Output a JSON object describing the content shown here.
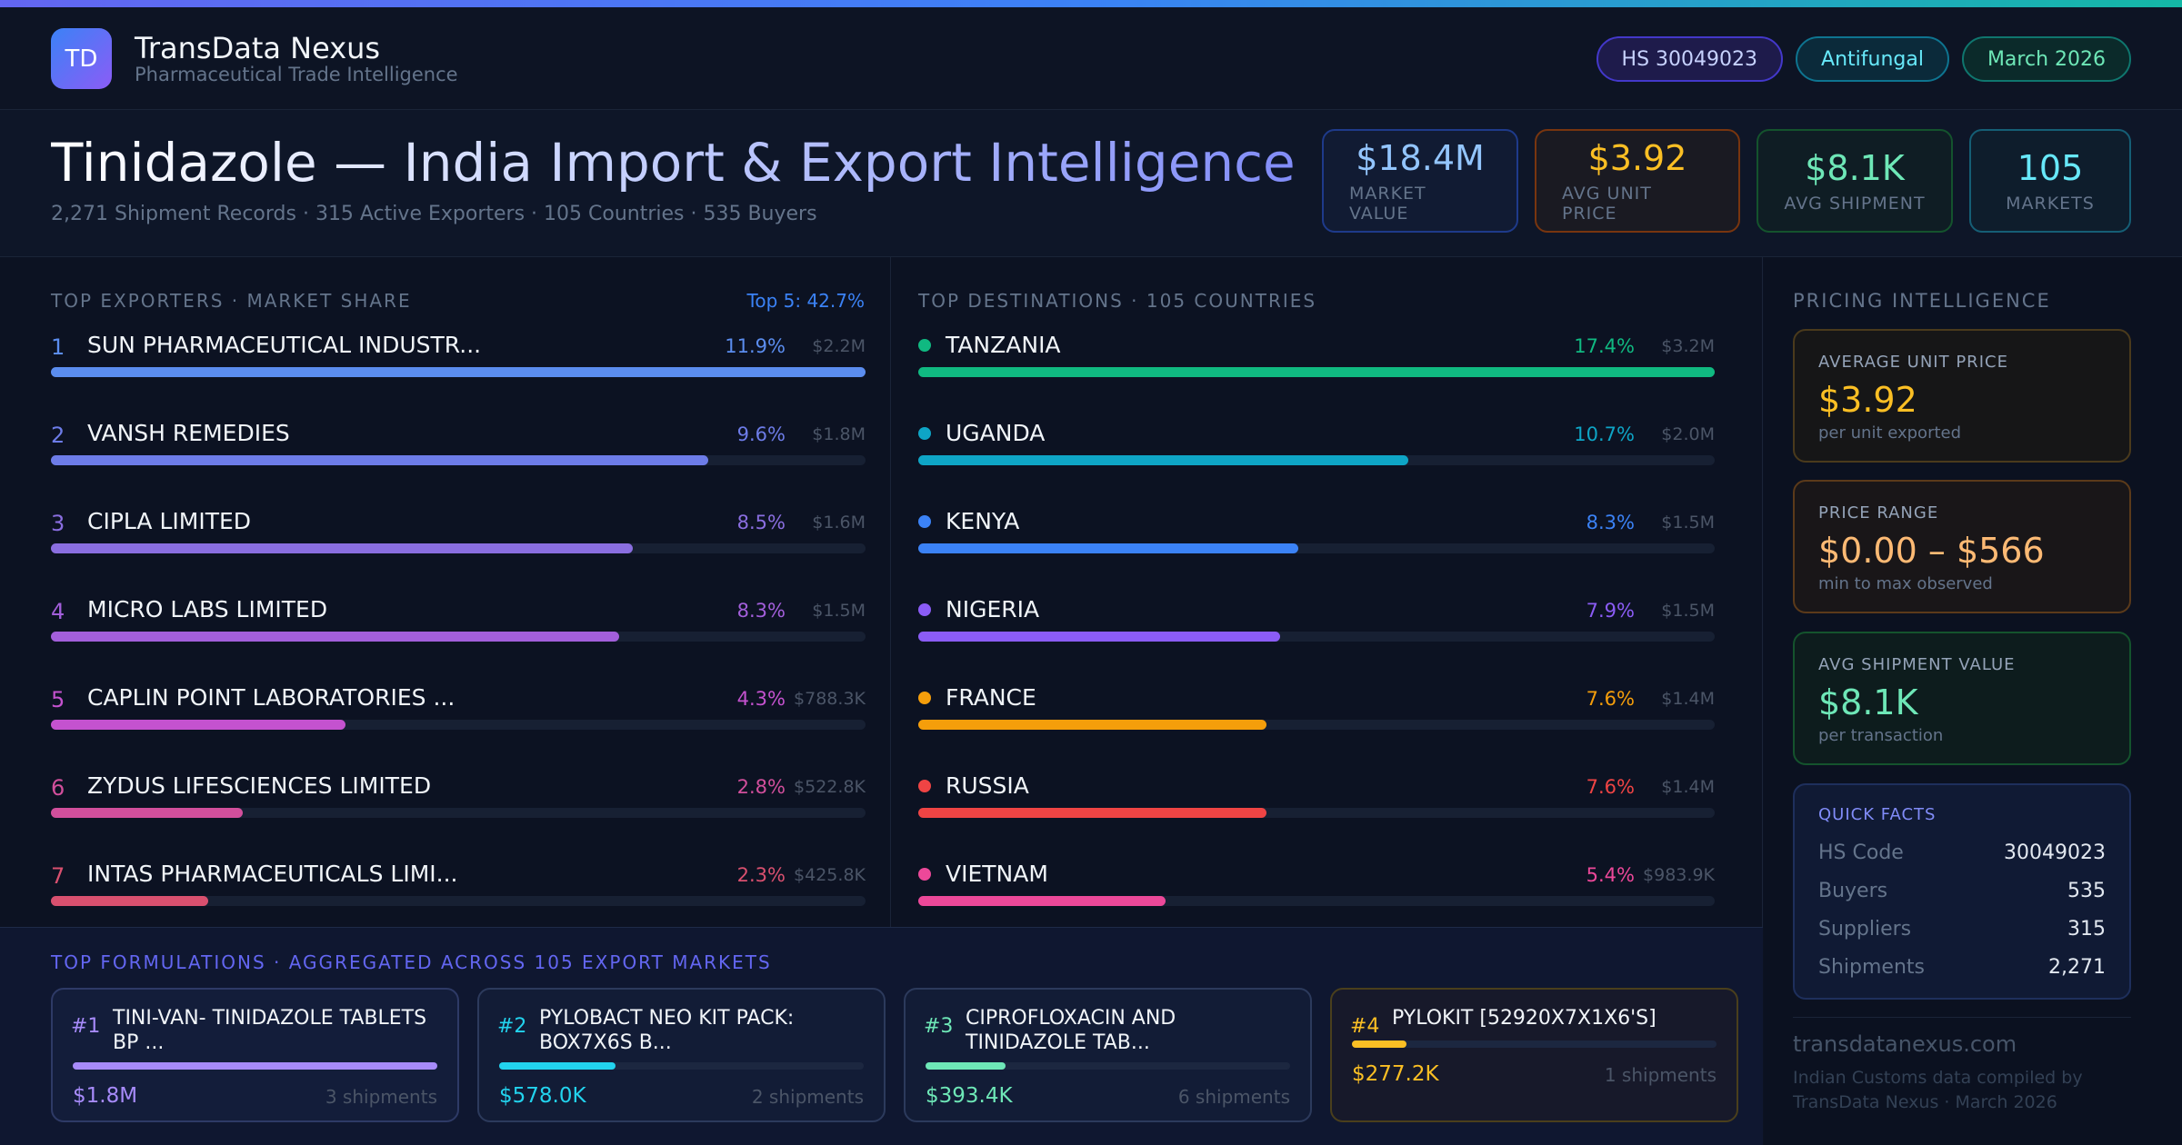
{
  "header": {
    "logo": "TD",
    "brand_name": "TransData Nexus",
    "brand_sub": "Pharmaceutical Trade Intelligence",
    "pills": [
      "HS 30049023",
      "Antifungal",
      "March 2026"
    ]
  },
  "title": {
    "main": "Tinidazole — India Import & Export Intelligence",
    "sub": "2,271 Shipment Records · 315 Active Exporters · 105 Countries · 535 Buyers"
  },
  "kpis": [
    {
      "value": "$18.4M",
      "label": "MARKET VALUE"
    },
    {
      "value": "$3.92",
      "label": "AVG UNIT PRICE"
    },
    {
      "value": "$8.1K",
      "label": "AVG SHIPMENT"
    },
    {
      "value": "105",
      "label": "MARKETS"
    }
  ],
  "exporters": {
    "heading": "TOP EXPORTERS · MARKET SHARE",
    "top5": "Top 5: 42.7%",
    "rows": [
      {
        "rank": "1",
        "name": "SUN PHARMACEUTICAL INDUSTR...",
        "pct": "11.9%",
        "amount": "$2.2M",
        "share": 11.9,
        "color": "#5b8def"
      },
      {
        "rank": "2",
        "name": "VANSH REMEDIES",
        "pct": "9.6%",
        "amount": "$1.8M",
        "share": 9.6,
        "color": "#6d7ce8"
      },
      {
        "rank": "3",
        "name": "CIPLA LIMITED",
        "pct": "8.5%",
        "amount": "$1.6M",
        "share": 8.5,
        "color": "#8a6ee0"
      },
      {
        "rank": "4",
        "name": "MICRO LABS LIMITED",
        "pct": "8.3%",
        "amount": "$1.5M",
        "share": 8.3,
        "color": "#a35fdb"
      },
      {
        "rank": "5",
        "name": "CAPLIN POINT LABORATORIES ...",
        "pct": "4.3%",
        "amount": "$788.3K",
        "share": 4.3,
        "color": "#c452cf"
      },
      {
        "rank": "6",
        "name": "ZYDUS LIFESCIENCES LIMITED",
        "pct": "2.8%",
        "amount": "$522.8K",
        "share": 2.8,
        "color": "#d24f9c"
      },
      {
        "rank": "7",
        "name": "INTAS PHARMACEUTICALS LIMI...",
        "pct": "2.3%",
        "amount": "$425.8K",
        "share": 2.3,
        "color": "#d9506f"
      }
    ]
  },
  "destinations": {
    "heading": "TOP DESTINATIONS · 105 COUNTRIES",
    "rows": [
      {
        "name": "TANZANIA",
        "pct": "17.4%",
        "amount": "$3.2M",
        "share": 17.4,
        "color": "#10b981"
      },
      {
        "name": "UGANDA",
        "pct": "10.7%",
        "amount": "$2.0M",
        "share": 10.7,
        "color": "#0ea5c6"
      },
      {
        "name": "KENYA",
        "pct": "8.3%",
        "amount": "$1.5M",
        "share": 8.3,
        "color": "#3b82f6"
      },
      {
        "name": "NIGERIA",
        "pct": "7.9%",
        "amount": "$1.5M",
        "share": 7.9,
        "color": "#8b5cf6"
      },
      {
        "name": "FRANCE",
        "pct": "7.6%",
        "amount": "$1.4M",
        "share": 7.6,
        "color": "#f59e0b"
      },
      {
        "name": "RUSSIA",
        "pct": "7.6%",
        "amount": "$1.4M",
        "share": 7.6,
        "color": "#ef4444"
      },
      {
        "name": "VIETNAM",
        "pct": "5.4%",
        "amount": "$983.9K",
        "share": 5.4,
        "color": "#ec4899"
      }
    ]
  },
  "pricing": {
    "heading": "PRICING INTELLIGENCE",
    "avg": {
      "label": "AVERAGE UNIT PRICE",
      "value": "$3.92",
      "sub": "per unit exported"
    },
    "range": {
      "label": "PRICE RANGE",
      "value": "$0.00 – $566",
      "sub": "min to max observed"
    },
    "shipment": {
      "label": "AVG SHIPMENT VALUE",
      "value": "$8.1K",
      "sub": "per transaction"
    },
    "facts": {
      "heading": "QUICK FACTS",
      "items": [
        {
          "key": "HS Code",
          "value": "30049023"
        },
        {
          "key": "Buyers",
          "value": "535"
        },
        {
          "key": "Suppliers",
          "value": "315"
        },
        {
          "key": "Shipments",
          "value": "2,271"
        }
      ]
    },
    "footer_site": "transdatanexus.com",
    "footer_note": "Indian Customs data compiled by TransData Nexus · March 2026"
  },
  "formulations": {
    "heading": "TOP FORMULATIONS · AGGREGATED ACROSS 105 EXPORT MARKETS",
    "items": [
      {
        "rank": "#1",
        "name": "TINI-VAN- TINIDAZOLE TABLETS BP ...",
        "value": "$1.8M",
        "count": "3 shipments",
        "share": 1.0,
        "color": "#a78bfa",
        "border": "#2e3a66",
        "bg": "#131d3a"
      },
      {
        "rank": "#2",
        "name": "PYLOBACT NEO KIT PACK: BOX7X6S B...",
        "value": "$578.0K",
        "count": "2 shipments",
        "share": 0.32,
        "color": "#22d3ee",
        "border": "#2c3a5c",
        "bg": "#121c36"
      },
      {
        "rank": "#3",
        "name": "CIPROFLOXACIN AND TINIDAZOLE TAB...",
        "value": "$393.4K",
        "count": "6 shipments",
        "share": 0.22,
        "color": "#6ee7b7",
        "border": "#2c3a5c",
        "bg": "#121c36"
      },
      {
        "rank": "#4",
        "name": "PYLOKIT [52920X7X1X6'S]",
        "value": "$277.2K",
        "count": "1 shipments",
        "share": 0.15,
        "color": "#fbbf24",
        "border": "#4a3f1c",
        "bg": "#17192a"
      }
    ]
  }
}
